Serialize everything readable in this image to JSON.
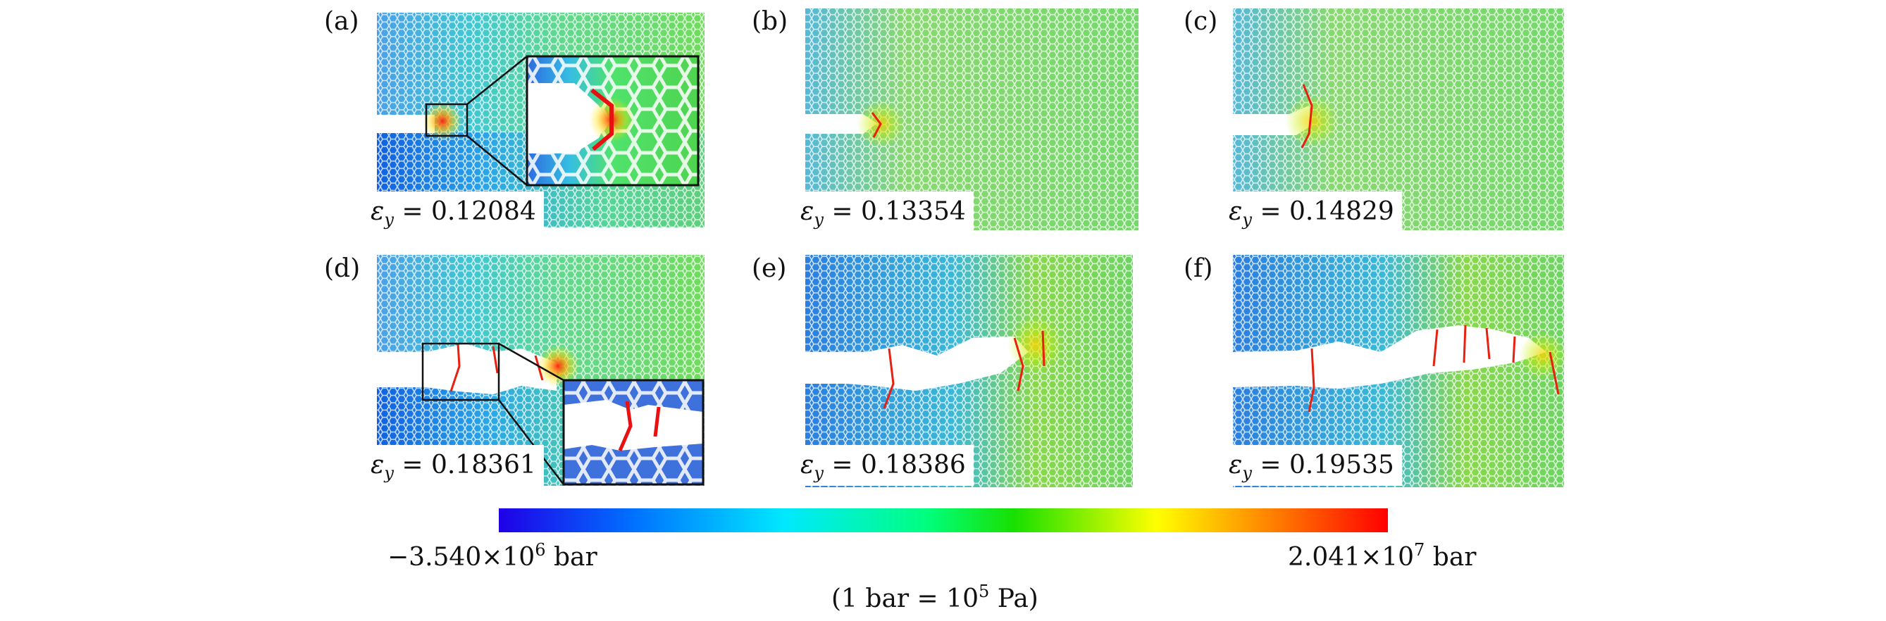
{
  "panels": [
    {
      "id": "a",
      "label": "(a)",
      "strain_symbol": "ε",
      "strain_sub": "y",
      "strain_value": "0.12084",
      "has_inset": true
    },
    {
      "id": "b",
      "label": "(b)",
      "strain_symbol": "ε",
      "strain_sub": "y",
      "strain_value": "0.13354",
      "has_inset": false
    },
    {
      "id": "c",
      "label": "(c)",
      "strain_symbol": "ε",
      "strain_sub": "y",
      "strain_value": "0.14829",
      "has_inset": false
    },
    {
      "id": "d",
      "label": "(d)",
      "strain_symbol": "ε",
      "strain_sub": "y",
      "strain_value": "0.18361",
      "has_inset": true
    },
    {
      "id": "e",
      "label": "(e)",
      "strain_symbol": "ε",
      "strain_sub": "y",
      "strain_value": "0.18386",
      "has_inset": false
    },
    {
      "id": "f",
      "label": "(f)",
      "strain_symbol": "ε",
      "strain_sub": "y",
      "strain_value": "0.19535",
      "has_inset": false
    }
  ],
  "colorbar": {
    "min_mantissa": "−3.540",
    "min_times": "×",
    "min_base": "10",
    "min_exp": "6",
    "min_unit": "bar",
    "max_mantissa": "2.041",
    "max_times": "×",
    "max_base": "10",
    "max_exp": "7",
    "max_unit": "bar",
    "colors": [
      "#1f00e6",
      "#0070ff",
      "#00e8ff",
      "#00ff80",
      "#18e000",
      "#ffff00",
      "#ff8000",
      "#ff0000"
    ]
  },
  "note": {
    "open": "(1 bar = ",
    "base": "10",
    "exp": "5",
    "close": " Pa)"
  }
}
